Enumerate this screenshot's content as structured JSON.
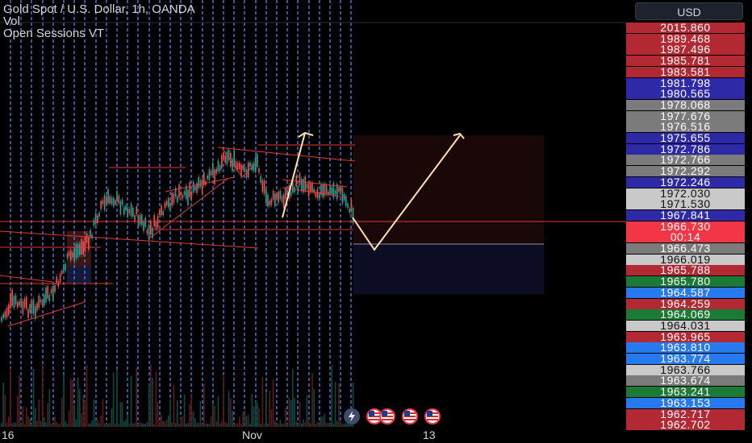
{
  "legend": {
    "symbol": "Gold Spot / U.S. Dollar, 1h, OANDA",
    "vol": "Vol",
    "sessions": "Open Sessions VT"
  },
  "currency_button": "USD",
  "colors": {
    "background": "#000000",
    "session_line": "#5b8df5",
    "up_candle": "#26a69a",
    "down_candle": "#ef5350",
    "pattern_line": "#e53935",
    "arrow_line": "#ffe0b2",
    "crosshair_line": "#f23645"
  },
  "price_scale": [
    {
      "text": "2015.860",
      "color": "#b22833"
    },
    {
      "text": "1989.468",
      "color": "#b22833"
    },
    {
      "text": "1987.496",
      "color": "#b22833"
    },
    {
      "text": "1985.781",
      "color": "#b22833"
    },
    {
      "text": "1983.581",
      "color": "#b22833"
    },
    {
      "text": "1981.798",
      "color": "#2e2aa7"
    },
    {
      "text": "1980.565",
      "color": "#2e2aa7"
    },
    {
      "text": "1978.068",
      "color": "#7b7b7b"
    },
    {
      "text": "1977.676",
      "color": "#7b7b7b"
    },
    {
      "text": "1976.516",
      "color": "#7b7b7b"
    },
    {
      "text": "1975.655",
      "color": "#2e2aa7"
    },
    {
      "text": "1972.786",
      "color": "#2e2aa7"
    },
    {
      "text": "1972.766",
      "color": "#7b7b7b"
    },
    {
      "text": "1972.292",
      "color": "#7b7b7b"
    },
    {
      "text": "1972.246",
      "color": "#2e2aa7"
    },
    {
      "text": "1972.030",
      "color": "#c9c9c9"
    },
    {
      "text": "1971.530",
      "color": "#c9c9c9"
    },
    {
      "text": "1967.841",
      "color": "#2e2aa7"
    },
    {
      "text": "1966.730",
      "color": "#f23645"
    },
    {
      "text": "00:14",
      "color": "#f23645"
    },
    {
      "text": "1966.473",
      "color": "#7b7b7b"
    },
    {
      "text": "1966.019",
      "color": "#c9c9c9"
    },
    {
      "text": "1965.788",
      "color": "#b22833"
    },
    {
      "text": "1965.780",
      "color": "#1b7a35"
    },
    {
      "text": "1964.587",
      "color": "#2779f0"
    },
    {
      "text": "1964.259",
      "color": "#b22833"
    },
    {
      "text": "1964.069",
      "color": "#1b7a35"
    },
    {
      "text": "1964.031",
      "color": "#c9c9c9"
    },
    {
      "text": "1963.965",
      "color": "#b22833"
    },
    {
      "text": "1963.810",
      "color": "#2779f0"
    },
    {
      "text": "1963.774",
      "color": "#2779f0"
    },
    {
      "text": "1963.766",
      "color": "#c9c9c9"
    },
    {
      "text": "1963.674",
      "color": "#7b7b7b"
    },
    {
      "text": "1963.241",
      "color": "#1b7a35"
    },
    {
      "text": "1963.153",
      "color": "#2779f0"
    },
    {
      "text": "1962.717",
      "color": "#b22833"
    },
    {
      "text": "1962.702",
      "color": "#b22833"
    }
  ],
  "time_axis": [
    "16",
    "Nov",
    "13"
  ],
  "event_icons": [
    "lightning-icon",
    "us-flag-icon",
    "us-flag-icon",
    "us-flag-icon",
    "us-flag-icon"
  ]
}
